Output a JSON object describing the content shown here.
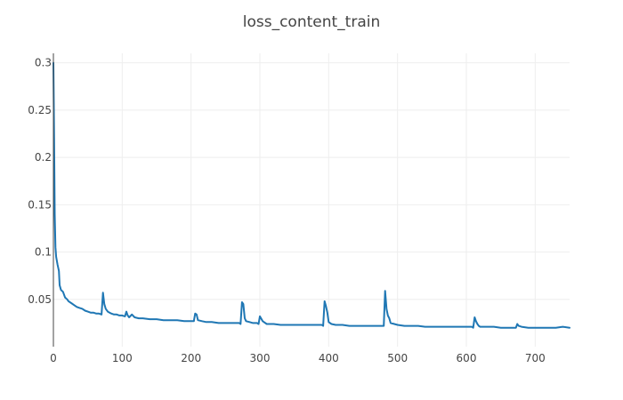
{
  "chart_data": {
    "type": "line",
    "title": "loss_content_train",
    "xlabel": "",
    "ylabel": "",
    "xlim": [
      0,
      750
    ],
    "ylim": [
      0.0,
      0.31
    ],
    "grid": true,
    "x_ticks": [
      0,
      100,
      200,
      300,
      400,
      500,
      600,
      700
    ],
    "y_ticks": [
      0.05,
      0.1,
      0.15,
      0.2,
      0.25,
      0.3
    ],
    "x_tick_labels": [
      "0",
      "100",
      "200",
      "300",
      "400",
      "500",
      "600",
      "700"
    ],
    "y_tick_labels": [
      "0.05",
      "0.1",
      "0.15",
      "0.2",
      "0.25",
      "0.3"
    ],
    "color": "#1f77b4",
    "series": [
      {
        "x": [
          0,
          1,
          2,
          3,
          4,
          6,
          8,
          9,
          11,
          14,
          17,
          20,
          22,
          26,
          30,
          34,
          38,
          42,
          46,
          50,
          54,
          58,
          62,
          66,
          70,
          72,
          74,
          76,
          79,
          84,
          88,
          92,
          96,
          100,
          104,
          106,
          108,
          110,
          114,
          118,
          124,
          130,
          140,
          150,
          160,
          170,
          180,
          190,
          200,
          204,
          206,
          208,
          210,
          216,
          222,
          230,
          240,
          250,
          260,
          270,
          272,
          274,
          276,
          278,
          280,
          285,
          290,
          296,
          298,
          300,
          304,
          310,
          320,
          330,
          340,
          350,
          360,
          370,
          380,
          390,
          392,
          394,
          396,
          398,
          400,
          404,
          410,
          420,
          430,
          440,
          450,
          460,
          470,
          476,
          478,
          480,
          482,
          484,
          486,
          488,
          490,
          500,
          510,
          520,
          530,
          540,
          550,
          560,
          570,
          580,
          590,
          600,
          606,
          608,
          610,
          612,
          614,
          616,
          618,
          620,
          630,
          640,
          650,
          660,
          670,
          672,
          674,
          676,
          680,
          690,
          700,
          710,
          720,
          730,
          740,
          750
        ],
        "y": [
          0.3,
          0.22,
          0.14,
          0.105,
          0.095,
          0.087,
          0.08,
          0.065,
          0.06,
          0.058,
          0.052,
          0.05,
          0.048,
          0.046,
          0.044,
          0.042,
          0.041,
          0.04,
          0.038,
          0.037,
          0.036,
          0.036,
          0.035,
          0.035,
          0.034,
          0.057,
          0.045,
          0.04,
          0.037,
          0.035,
          0.034,
          0.034,
          0.033,
          0.033,
          0.032,
          0.037,
          0.033,
          0.031,
          0.034,
          0.031,
          0.03,
          0.03,
          0.029,
          0.029,
          0.028,
          0.028,
          0.028,
          0.027,
          0.027,
          0.027,
          0.035,
          0.034,
          0.028,
          0.027,
          0.026,
          0.026,
          0.025,
          0.025,
          0.025,
          0.025,
          0.024,
          0.047,
          0.045,
          0.03,
          0.027,
          0.026,
          0.025,
          0.025,
          0.024,
          0.032,
          0.027,
          0.024,
          0.024,
          0.023,
          0.023,
          0.023,
          0.023,
          0.023,
          0.023,
          0.023,
          0.022,
          0.048,
          0.043,
          0.036,
          0.026,
          0.024,
          0.023,
          0.023,
          0.022,
          0.022,
          0.022,
          0.022,
          0.022,
          0.022,
          0.022,
          0.022,
          0.059,
          0.04,
          0.033,
          0.03,
          0.025,
          0.023,
          0.022,
          0.022,
          0.022,
          0.021,
          0.021,
          0.021,
          0.021,
          0.021,
          0.021,
          0.021,
          0.021,
          0.021,
          0.02,
          0.031,
          0.027,
          0.024,
          0.022,
          0.021,
          0.021,
          0.021,
          0.02,
          0.02,
          0.02,
          0.02,
          0.024,
          0.022,
          0.021,
          0.02,
          0.02,
          0.02,
          0.02,
          0.02,
          0.021,
          0.02
        ]
      }
    ]
  }
}
